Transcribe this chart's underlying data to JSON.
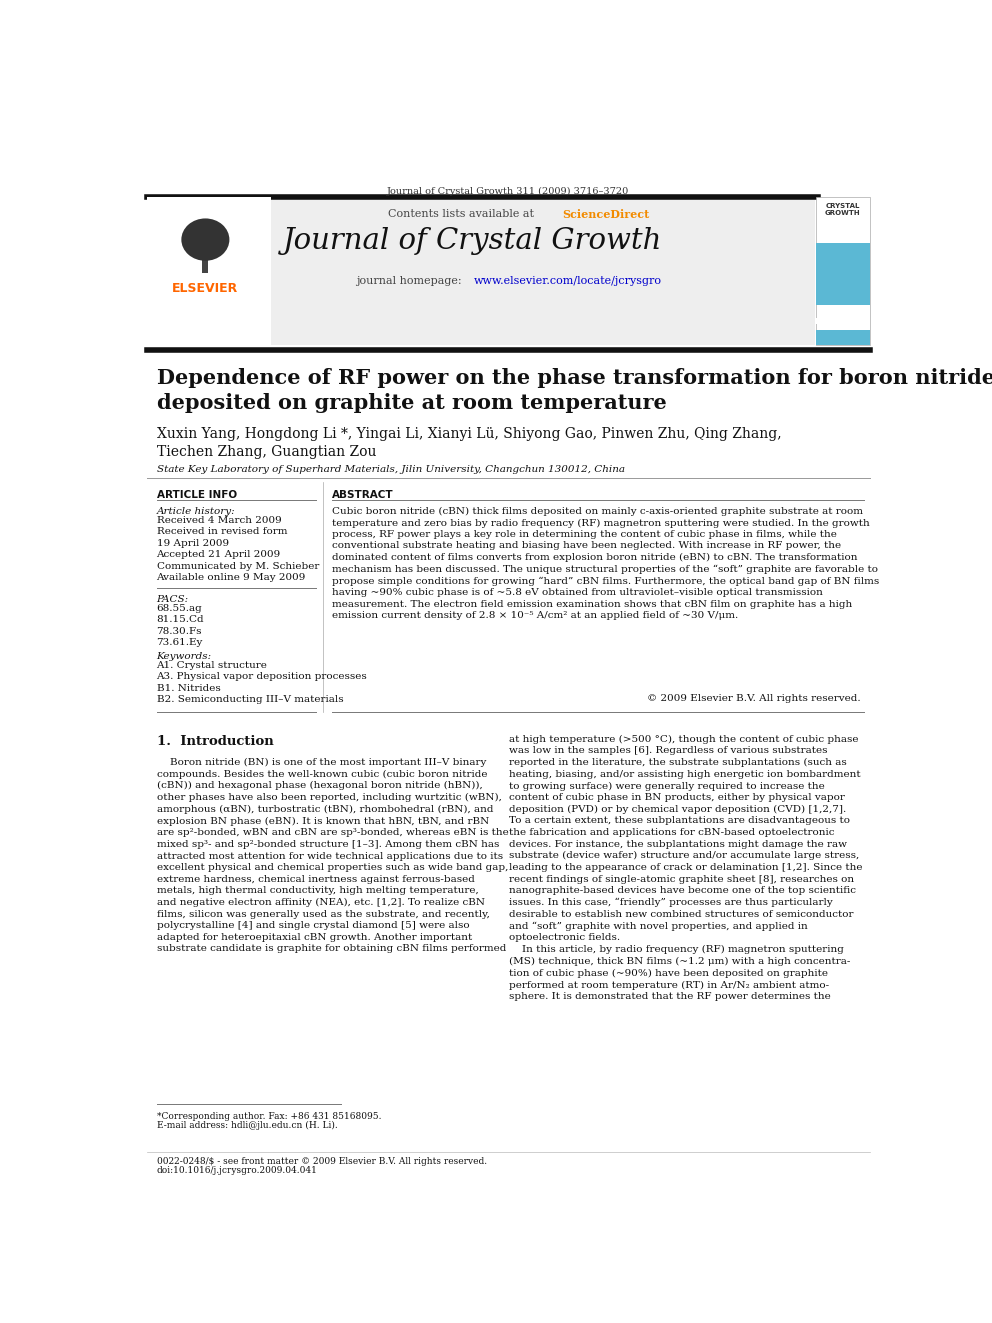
{
  "page_title": "Journal of Crystal Growth 311 (2009) 3716–3720",
  "journal_name": "Journal of Crystal Growth",
  "contents_line": "Contents lists available at ScienceDirect",
  "homepage_line": "journal homepage: www.elsevier.com/locate/jcrysgro",
  "article_title": "Dependence of RF power on the phase transformation for boron nitride films\ndeposited on graphite at room temperature",
  "authors": "Xuxin Yang, Hongdong Li *, Yingai Li, Xianyi Lü, Shiyong Gao, Pinwen Zhu, Qing Zhang,\nTiechen Zhang, Guangtian Zou",
  "affiliation": "State Key Laboratory of Superhard Materials, Jilin University, Changchun 130012, China",
  "article_info_header": "ARTICLE INFO",
  "article_history_label": "Article history:",
  "article_history": "Received 4 March 2009\nReceived in revised form\n19 April 2009\nAccepted 21 April 2009\nCommunicated by M. Schieber\nAvailable online 9 May 2009",
  "pacs_label": "PACS:",
  "pacs": "68.55.ag\n81.15.Cd\n78.30.Fs\n73.61.Ey",
  "keywords_label": "Keywords:",
  "keywords": "A1. Crystal structure\nA3. Physical vapor deposition processes\nB1. Nitrides\nB2. Semiconducting III–V materials",
  "abstract_header": "ABSTRACT",
  "abstract_text": "Cubic boron nitride (cBN) thick films deposited on mainly c-axis-oriented graphite substrate at room\ntemperature and zero bias by radio frequency (RF) magnetron sputtering were studied. In the growth\nprocess, RF power plays a key role in determining the content of cubic phase in films, while the\nconventional substrate heating and biasing have been neglected. With increase in RF power, the\ndominated content of films converts from explosion boron nitride (eBN) to cBN. The transformation\nmechanism has been discussed. The unique structural properties of the “soft” graphite are favorable to\npropose simple conditions for growing “hard” cBN films. Furthermore, the optical band gap of BN films\nhaving ~90% cubic phase is of ~5.8 eV obtained from ultraviolet–visible optical transmission\nmeasurement. The electron field emission examination shows that cBN film on graphite has a high\nemission current density of 2.8 × 10⁻⁵ A/cm² at an applied field of ~30 V/μm.",
  "copyright": "© 2009 Elsevier B.V. All rights reserved.",
  "intro_header": "1.  Introduction",
  "intro_left": "    Boron nitride (BN) is one of the most important III–V binary\ncompounds. Besides the well-known cubic (cubic boron nitride\n(cBN)) and hexagonal phase (hexagonal boron nitride (hBN)),\nother phases have also been reported, including wurtzitic (wBN),\namorphous (αBN), turbostratic (tBN), rhombohedral (rBN), and\nexplosion BN phase (eBN). It is known that hBN, tBN, and rBN\nare sp²-bonded, wBN and cBN are sp³-bonded, whereas eBN is the\nmixed sp³- and sp²-bonded structure [1–3]. Among them cBN has\nattracted most attention for wide technical applications due to its\nexcellent physical and chemical properties such as wide band gap,\nextreme hardness, chemical inertness against ferrous-based\nmetals, high thermal conductivity, high melting temperature,\nand negative electron affinity (NEA), etc. [1,2]. To realize cBN\nfilms, silicon was generally used as the substrate, and recently,\npolycrystalline [4] and single crystal diamond [5] were also\nadapted for heteroepitaxial cBN growth. Another important\nsubstrate candidate is graphite for obtaining cBN films performed",
  "intro_right": "at high temperature (>500 °C), though the content of cubic phase\nwas low in the samples [6]. Regardless of various substrates\nreported in the literature, the substrate subplantations (such as\nheating, biasing, and/or assisting high energetic ion bombardment\nto growing surface) were generally required to increase the\ncontent of cubic phase in BN products, either by physical vapor\ndeposition (PVD) or by chemical vapor deposition (CVD) [1,2,7].\nTo a certain extent, these subplantations are disadvantageous to\nthe fabrication and applications for cBN-based optoelectronic\ndevices. For instance, the subplantations might damage the raw\nsubstrate (device wafer) structure and/or accumulate large stress,\nleading to the appearance of crack or delamination [1,2]. Since the\nrecent findings of single-atomic graphite sheet [8], researches on\nnanographite-based devices have become one of the top scientific\nissues. In this case, “friendly” processes are thus particularly\ndesirable to establish new combined structures of semiconductor\nand “soft” graphite with novel properties, and applied in\noptoelectronic fields.\n    In this article, by radio frequency (RF) magnetron sputtering\n(MS) technique, thick BN films (~1.2 μm) with a high concentra-\ntion of cubic phase (~90%) have been deposited on graphite\nperformed at room temperature (RT) in Ar/N₂ ambient atmo-\nsphere. It is demonstrated that the RF power determines the",
  "footnote_line1": "*Corresponding author. Fax: +86 431 85168095.",
  "footnote_line2": "E-mail address: hdli@jlu.edu.cn (H. Li).",
  "footer_line1": "0022-0248/$ - see front matter © 2009 Elsevier B.V. All rights reserved.",
  "footer_line2": "doi:10.1016/j.jcrysgro.2009.04.041",
  "bg_color": "#ffffff",
  "science_direct_color": "#f28b00",
  "link_color": "#0000cc",
  "elsevier_orange": "#ff6600",
  "crystal_growth_blue": "#5bb8d4"
}
